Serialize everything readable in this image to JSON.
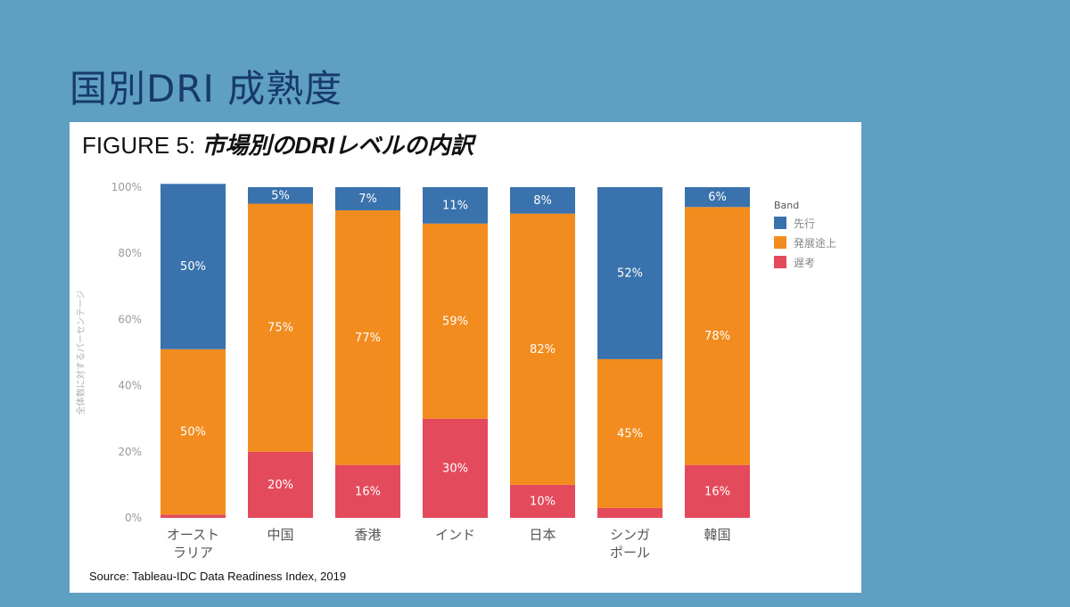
{
  "slide": {
    "title": "国別DRI 成熟度"
  },
  "figure": {
    "label": "FIGURE 5: ",
    "subtitle": "市場別のDRIレベルの内訳",
    "source": "Source: Tableau-IDC Data Readiness Index, 2019"
  },
  "chart_data": {
    "type": "bar",
    "stacked": true,
    "categories": [
      [
        "オースト",
        "ラリア"
      ],
      [
        "中国"
      ],
      [
        "香港"
      ],
      [
        "インド"
      ],
      [
        "日本"
      ],
      [
        "シンガ",
        "ポール"
      ],
      [
        "韓国"
      ]
    ],
    "series": [
      {
        "name": "遅考",
        "color": "#e34b5c",
        "values": [
          1,
          20,
          16,
          30,
          10,
          3,
          16
        ],
        "labels": [
          "1%",
          "20%",
          "16%",
          "30%",
          "10%",
          "3%",
          "16%"
        ]
      },
      {
        "name": "発展途上",
        "color": "#f28c1e",
        "values": [
          50,
          75,
          77,
          59,
          82,
          45,
          78
        ],
        "labels": [
          "50%",
          "75%",
          "77%",
          "59%",
          "82%",
          "45%",
          "78%"
        ]
      },
      {
        "name": "先行",
        "color": "#3a72ad",
        "values": [
          50,
          5,
          7,
          11,
          8,
          52,
          6
        ],
        "labels": [
          "50%",
          "5%",
          "7%",
          "11%",
          "8%",
          "52%",
          "6%"
        ]
      }
    ],
    "legend_order": [
      "先行",
      "発展途上",
      "遅考"
    ],
    "legend_title": "Band",
    "legend_position": "right-top",
    "ylabel": "全体数に対するパーセンテージ",
    "ylim": [
      0,
      100
    ],
    "yticks": [
      "0%",
      "20%",
      "40%",
      "60%",
      "80%",
      "100%"
    ],
    "grid": false
  }
}
